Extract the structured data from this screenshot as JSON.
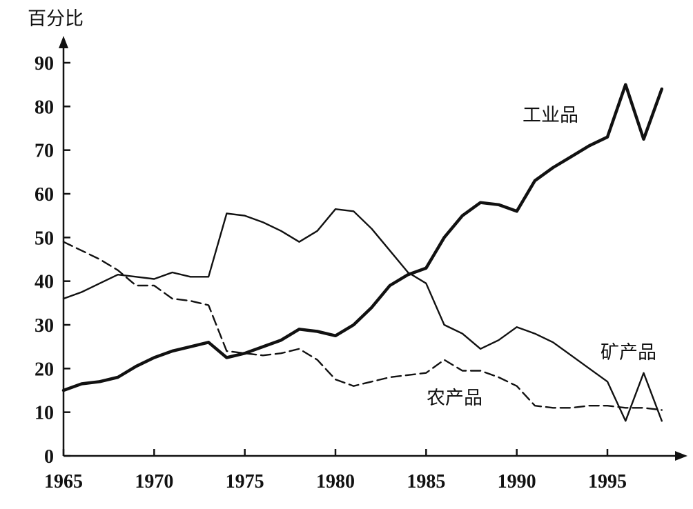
{
  "chart_data": {
    "type": "line",
    "ylabel": "百分比",
    "xlabel": "",
    "xlim": [
      1965,
      1999
    ],
    "ylim": [
      0,
      95
    ],
    "x_ticks": [
      "1965",
      "1970",
      "1975",
      "1980",
      "1985",
      "1990",
      "1995"
    ],
    "y_ticks": [
      "0",
      "10",
      "20",
      "30",
      "40",
      "50",
      "60",
      "70",
      "80",
      "90"
    ],
    "grid": false,
    "series": [
      {
        "name": "工业品",
        "style": "thick-solid",
        "color": "#111111",
        "points": [
          [
            1965,
            15
          ],
          [
            1966,
            16.5
          ],
          [
            1967,
            17
          ],
          [
            1968,
            18
          ],
          [
            1969,
            20.5
          ],
          [
            1970,
            22.5
          ],
          [
            1971,
            24
          ],
          [
            1972,
            25
          ],
          [
            1973,
            26
          ],
          [
            1974,
            22.5
          ],
          [
            1975,
            23.5
          ],
          [
            1976,
            25
          ],
          [
            1977,
            26.5
          ],
          [
            1978,
            29
          ],
          [
            1979,
            28.5
          ],
          [
            1980,
            27.5
          ],
          [
            1981,
            30
          ],
          [
            1982,
            34
          ],
          [
            1983,
            39
          ],
          [
            1984,
            41.5
          ],
          [
            1985,
            43
          ],
          [
            1986,
            50
          ],
          [
            1987,
            55
          ],
          [
            1988,
            58
          ],
          [
            1989,
            57.5
          ],
          [
            1990,
            56
          ],
          [
            1991,
            63
          ],
          [
            1992,
            66
          ],
          [
            1993,
            68.5
          ],
          [
            1994,
            71
          ],
          [
            1995,
            73
          ],
          [
            1996,
            85
          ],
          [
            1997,
            72.5
          ],
          [
            1998,
            84
          ]
        ]
      },
      {
        "name": "矿产品",
        "style": "thin-solid",
        "color": "#111111",
        "points": [
          [
            1965,
            36
          ],
          [
            1966,
            37.5
          ],
          [
            1967,
            39.5
          ],
          [
            1968,
            41.5
          ],
          [
            1969,
            41
          ],
          [
            1970,
            40.5
          ],
          [
            1971,
            42
          ],
          [
            1972,
            41
          ],
          [
            1973,
            41
          ],
          [
            1974,
            55.5
          ],
          [
            1975,
            55
          ],
          [
            1976,
            53.5
          ],
          [
            1977,
            51.5
          ],
          [
            1978,
            49
          ],
          [
            1979,
            51.5
          ],
          [
            1980,
            56.5
          ],
          [
            1981,
            56
          ],
          [
            1982,
            52
          ],
          [
            1983,
            47
          ],
          [
            1984,
            42
          ],
          [
            1985,
            39.5
          ],
          [
            1986,
            30
          ],
          [
            1987,
            28
          ],
          [
            1988,
            24.5
          ],
          [
            1989,
            26.5
          ],
          [
            1990,
            29.5
          ],
          [
            1991,
            28
          ],
          [
            1992,
            26
          ],
          [
            1993,
            23
          ],
          [
            1994,
            20
          ],
          [
            1995,
            17
          ],
          [
            1996,
            8
          ],
          [
            1997,
            19
          ],
          [
            1998,
            8
          ]
        ]
      },
      {
        "name": "农产品",
        "style": "dashed",
        "color": "#111111",
        "points": [
          [
            1965,
            49
          ],
          [
            1966,
            47
          ],
          [
            1967,
            45
          ],
          [
            1968,
            42.5
          ],
          [
            1969,
            39
          ],
          [
            1970,
            39
          ],
          [
            1971,
            36
          ],
          [
            1972,
            35.5
          ],
          [
            1973,
            34.5
          ],
          [
            1974,
            24
          ],
          [
            1975,
            23.5
          ],
          [
            1976,
            23
          ],
          [
            1977,
            23.5
          ],
          [
            1978,
            24.5
          ],
          [
            1979,
            22
          ],
          [
            1980,
            17.5
          ],
          [
            1981,
            16
          ],
          [
            1982,
            17
          ],
          [
            1983,
            18
          ],
          [
            1984,
            18.5
          ],
          [
            1985,
            19
          ],
          [
            1986,
            22
          ],
          [
            1987,
            19.5
          ],
          [
            1988,
            19.5
          ],
          [
            1989,
            18
          ],
          [
            1990,
            16
          ],
          [
            1991,
            11.5
          ],
          [
            1992,
            11
          ],
          [
            1993,
            11
          ],
          [
            1994,
            11.5
          ],
          [
            1995,
            11.5
          ],
          [
            1996,
            11
          ],
          [
            1997,
            11
          ],
          [
            1998,
            10.5
          ]
        ]
      }
    ]
  }
}
